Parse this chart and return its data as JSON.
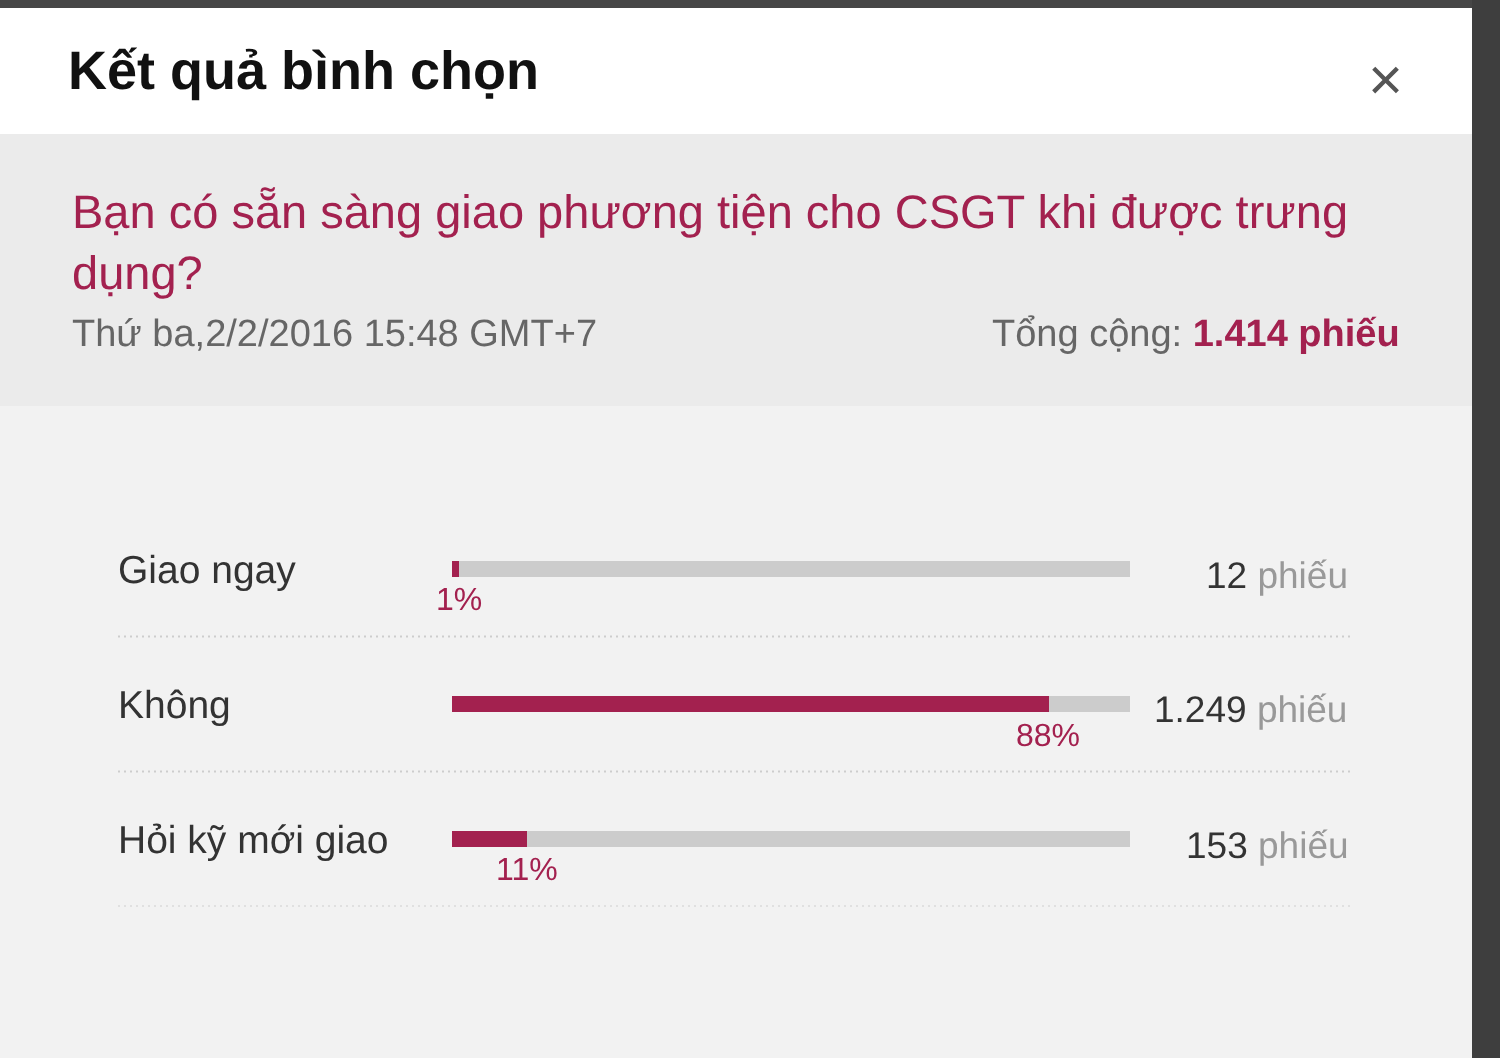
{
  "chart_data": {
    "type": "bar",
    "orientation": "horizontal",
    "stacked": true,
    "title": "Kết quả bình chọn",
    "subtitle": "Bạn có sẵn sàng giao phương tiện cho CSGT khi được trưng dụng?",
    "categories": [
      "Giao ngay",
      "Không",
      "Hỏi kỹ mới giao"
    ],
    "series": [
      {
        "color": "#a3214f",
        "values": [
          1,
          88,
          11
        ],
        "value_labels": [
          "1%",
          "88%",
          "11%"
        ]
      },
      {
        "color": "#cccccc",
        "values": [
          99,
          12,
          89
        ]
      }
    ],
    "tick_labels": "y",
    "grid": "y",
    "annotations": [
      "Thứ ba,2/2/2016 15:48 GMT+7",
      "Tổng cộng: 1.414 phiếu",
      "×",
      "12 phiếu",
      "1.249 phiếu",
      "153 phiếu"
    ]
  }
}
